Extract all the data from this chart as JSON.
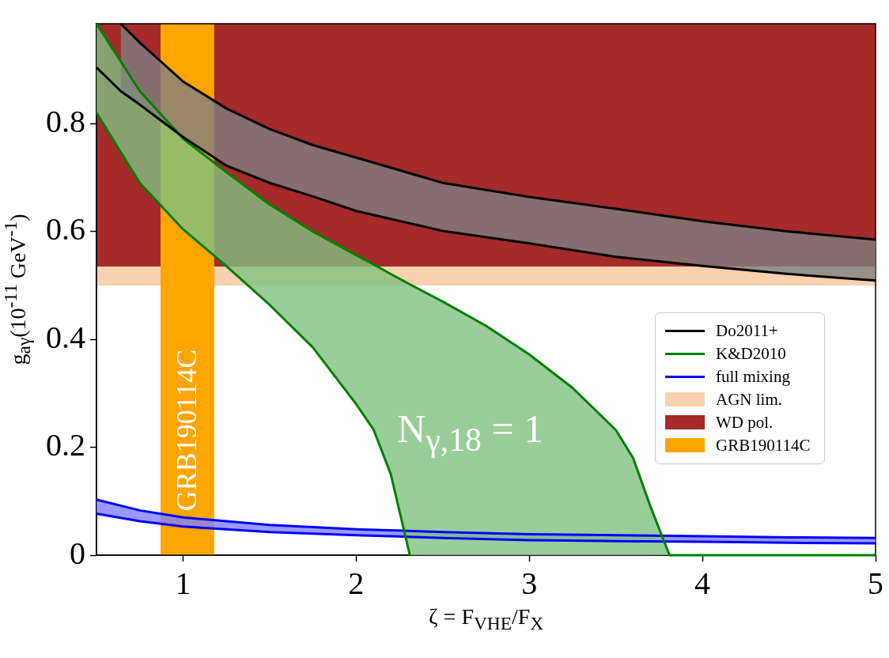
{
  "chart_data": {
    "type": "line",
    "xlabel": "ζ = F$_{VHE}$/F$_{X}$",
    "ylabel": "g$_{aγ}$(10$^{-11}$ GeV$^{-1}$)",
    "xlim": [
      0.5,
      5
    ],
    "xticks": [
      1,
      2,
      3,
      4,
      5
    ],
    "ylim": [
      0,
      0.985
    ],
    "yticks": [
      0,
      0.2,
      0.4,
      0.6,
      0.8
    ],
    "legend": "right",
    "grid": false,
    "series": [
      {
        "name": "Do2011+",
        "color": "#000000",
        "x": [
          0.64,
          0.75,
          1,
          1.25,
          1.5,
          1.75,
          2,
          2.5,
          3,
          3.5,
          4,
          4.5,
          5
        ],
        "values": [
          0.985,
          0.95,
          0.878,
          0.828,
          0.79,
          0.76,
          0.737,
          0.69,
          0.664,
          0.642,
          0.619,
          0.6,
          0.585
        ],
        "upper": [
          0.985,
          0.95,
          0.878,
          0.828,
          0.79,
          0.76,
          0.737,
          0.69,
          0.664,
          0.642,
          0.619,
          0.6,
          0.585
        ],
        "lower": [
          0.86,
          0.835,
          0.775,
          0.722,
          0.69,
          0.665,
          0.638,
          0.601,
          0.578,
          0.553,
          0.536,
          0.521,
          0.509
        ]
      },
      {
        "color": "#000000",
        "x": [
          0.5,
          0.64,
          0.75,
          1,
          1.25,
          1.5,
          1.75,
          2,
          2.5,
          3,
          3.5,
          4,
          4.5,
          5
        ],
        "values": [
          0.904,
          0.86,
          0.835,
          0.775,
          0.722,
          0.69,
          0.665,
          0.638,
          0.601,
          0.578,
          0.553,
          0.536,
          0.521,
          0.509
        ]
      },
      {
        "name": "K&D2010",
        "color": "#008000",
        "x": [
          0.5,
          0.75,
          1,
          1.25,
          1.5,
          1.75,
          2,
          2.1,
          2.2,
          2.31,
          2.5,
          2.75,
          3,
          3.25,
          3.5,
          3.6,
          3.7,
          3.81,
          4,
          5
        ],
        "values": [
          0.985,
          0.86,
          0.772,
          0.71,
          0.65,
          0.6,
          0.556,
          0.539,
          0.521,
          0.502,
          0.47,
          0.425,
          0.372,
          0.31,
          0.232,
          0.18,
          0.09,
          0,
          0,
          0
        ],
        "upper": [
          0.985,
          0.86,
          0.772,
          0.71,
          0.65,
          0.6,
          0.556,
          0.539,
          0.521,
          0.502,
          0.47,
          0.425,
          0.372,
          0.31,
          0.232,
          0.18,
          0.09,
          0,
          0,
          0
        ],
        "lower": [
          0.82,
          0.69,
          0.604,
          0.536,
          0.464,
          0.385,
          0.28,
          0.233,
          0.15,
          0,
          0,
          0,
          0,
          0,
          0,
          0,
          0,
          0,
          0,
          0
        ]
      },
      {
        "color": "#008000",
        "x": [
          0.5,
          0.75,
          1,
          1.25,
          1.5,
          1.75,
          2,
          2.1,
          2.2,
          2.31
        ],
        "values": [
          0.82,
          0.69,
          0.604,
          0.536,
          0.464,
          0.385,
          0.28,
          0.233,
          0.15,
          0
        ]
      },
      {
        "name": "full mixing",
        "color": "#0000ff",
        "x": [
          0.5,
          0.75,
          1,
          1.5,
          2,
          2.5,
          3,
          3.5,
          4,
          4.5,
          5
        ],
        "values": [
          0.103,
          0.083,
          0.07,
          0.056,
          0.048,
          0.043,
          0.039,
          0.037,
          0.035,
          0.033,
          0.032
        ],
        "upper": [
          0.103,
          0.083,
          0.07,
          0.056,
          0.048,
          0.043,
          0.039,
          0.037,
          0.035,
          0.033,
          0.032
        ],
        "lower": [
          0.077,
          0.063,
          0.053,
          0.043,
          0.037,
          0.032,
          0.028,
          0.026,
          0.025,
          0.023,
          0.022
        ]
      },
      {
        "color": "#0000ff",
        "x": [
          0.5,
          0.75,
          1,
          1.5,
          2,
          2.5,
          3,
          3.5,
          4,
          4.5,
          5
        ],
        "values": [
          0.077,
          0.063,
          0.053,
          0.043,
          0.037,
          0.032,
          0.028,
          0.026,
          0.025,
          0.023,
          0.022
        ]
      }
    ],
    "bands": [
      {
        "axis": "y",
        "from": 0.5,
        "to": 0.535,
        "label": "AGN lim.",
        "color": "#f9d1ae"
      },
      {
        "axis": "y",
        "from": 0.535,
        "to": 0.985,
        "label": "WD pol.",
        "color": "#a52a2a"
      },
      {
        "axis": "x",
        "from": 0.87,
        "to": 1.18,
        "label": "GRB190114C",
        "color": "#ffa500"
      }
    ],
    "annotations": [
      "N$_{γ,18}$ = 1"
    ]
  }
}
